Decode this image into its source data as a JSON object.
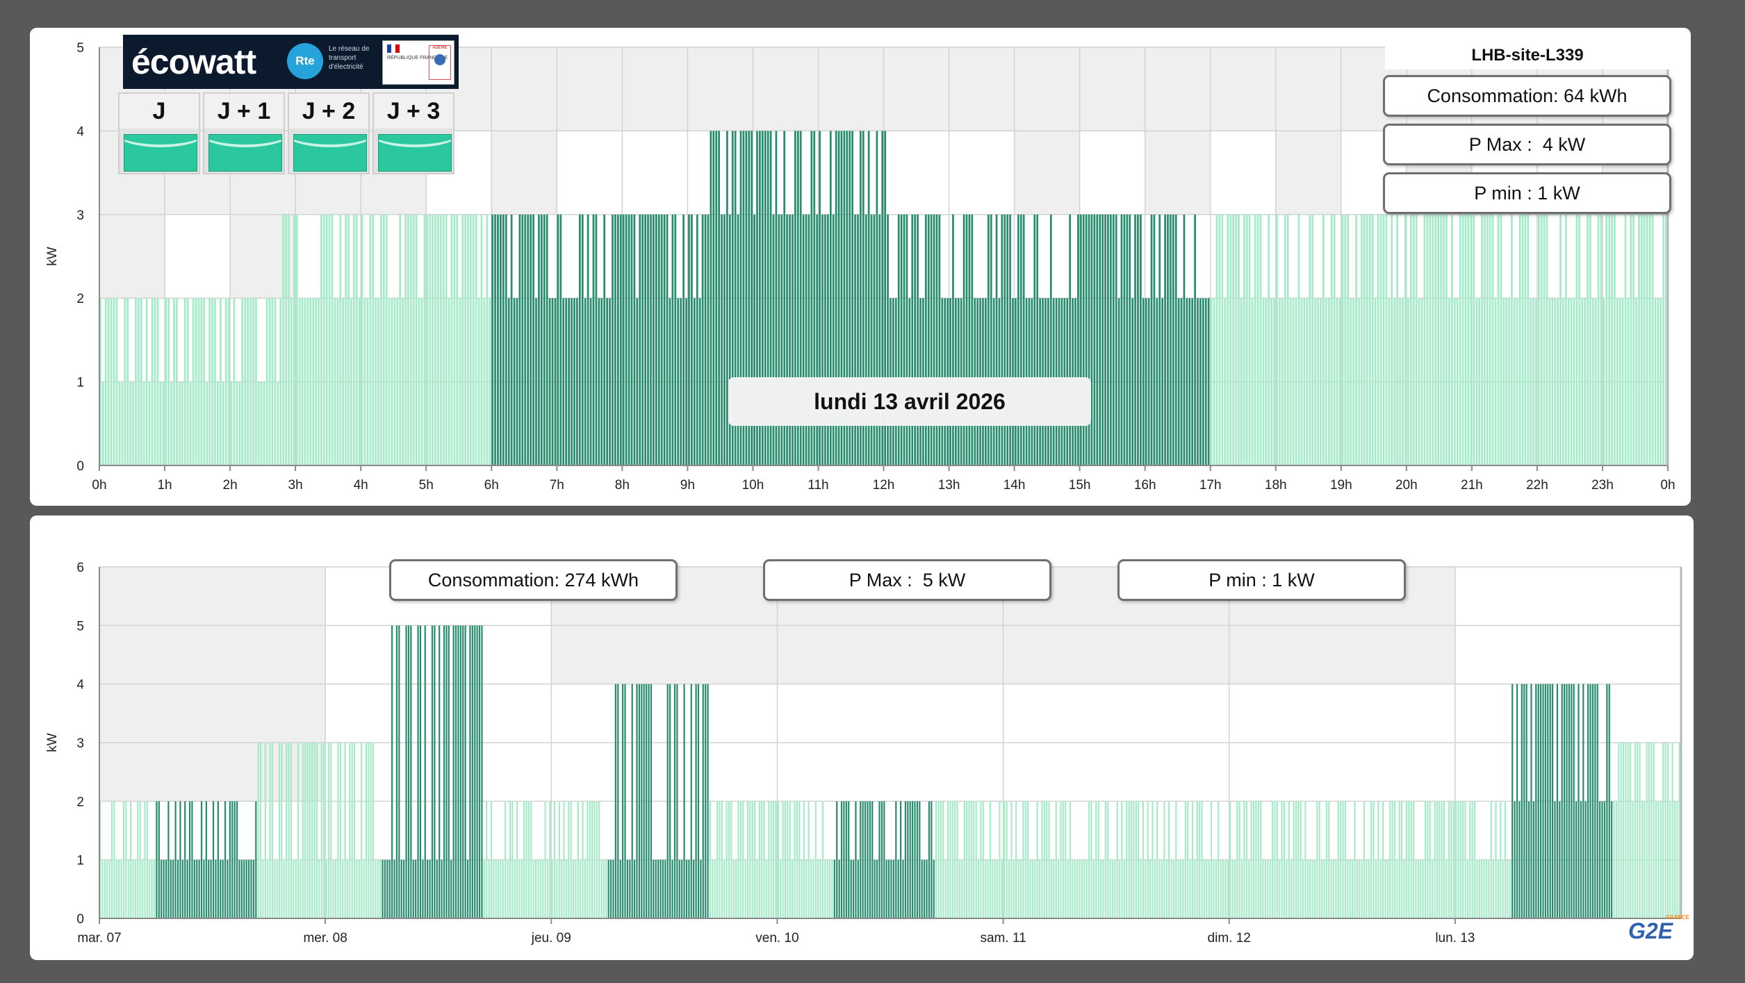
{
  "colors": {
    "light_green": "#a4ebc8",
    "dark_green": "#268d6c",
    "band_grey": "#efefef",
    "white": "#ffffff",
    "grid": "#d2d2d2",
    "axis": "#8a8a8a"
  },
  "ecowatt": {
    "brand": "écowatt",
    "rte_name": "Rte",
    "rte_tagline": "Le réseau de transport d'électricité",
    "republique": "RÉPUBLIQUE FRANÇAISE",
    "ademe": "ADEME",
    "days": [
      "J",
      "J + 1",
      "J + 2",
      "J + 3"
    ],
    "day_signal": [
      "green",
      "green",
      "green",
      "green"
    ]
  },
  "daily": {
    "site": "LHB-site-L339",
    "consumption": "Consommation: 64 kWh",
    "pmax": "P Max :  4 kW",
    "pmin": "P min : 1 kW",
    "date": "lundi 13 avril 2026"
  },
  "weekly": {
    "consumption": "Consommation: 274 kWh",
    "pmax": "P Max :  5 kW",
    "pmin": "P min : 1 kW"
  },
  "footer_logo": {
    "brand": "G2E",
    "country": "FRANCE"
  },
  "chart_data": [
    {
      "type": "bar",
      "title": "",
      "xlabel": "",
      "ylabel": "kW",
      "ylim": [
        0,
        5
      ],
      "yticks": [
        0,
        1,
        2,
        3,
        4,
        5
      ],
      "xticks": [
        "0h",
        "1h",
        "2h",
        "3h",
        "4h",
        "5h",
        "6h",
        "7h",
        "8h",
        "9h",
        "10h",
        "11h",
        "12h",
        "13h",
        "14h",
        "15h",
        "16h",
        "17h",
        "18h",
        "19h",
        "20h",
        "21h",
        "22h",
        "23h",
        "0h"
      ],
      "x_unit": "hour of day",
      "background_bands_kW": [
        {
          "from_h": 0,
          "to_h": 1,
          "level": 2
        },
        {
          "from_h": 1,
          "to_h": 2,
          "level": 3
        },
        {
          "from_h": 2,
          "to_h": 3,
          "level": 2
        },
        {
          "from_h": 3,
          "to_h": 5,
          "level": 3
        },
        {
          "from_h": 5,
          "to_h": 6,
          "level": 4
        },
        {
          "from_h": 6,
          "to_h": 7,
          "level": 3
        },
        {
          "from_h": 7,
          "to_h": 9,
          "level": 4
        },
        {
          "from_h": 9,
          "to_h": 12.5,
          "level": 4
        },
        {
          "from_h": 12.5,
          "to_h": 13,
          "level": 4
        },
        {
          "from_h": 13,
          "to_h": 14,
          "level": 4
        },
        {
          "from_h": 14,
          "to_h": 15,
          "level": 3
        },
        {
          "from_h": 15,
          "to_h": 16,
          "level": 4
        },
        {
          "from_h": 16,
          "to_h": 17,
          "level": 3
        },
        {
          "from_h": 17,
          "to_h": 18,
          "level": 4
        },
        {
          "from_h": 18,
          "to_h": 19,
          "level": 3
        },
        {
          "from_h": 19,
          "to_h": 20,
          "level": 4
        },
        {
          "from_h": 20,
          "to_h": 21,
          "level": 3
        },
        {
          "from_h": 21,
          "to_h": 23,
          "level": 4
        },
        {
          "from_h": 23,
          "to_h": 24,
          "level": 3
        }
      ],
      "series": [
        {
          "tariff": "off-peak",
          "segments": [
            {
              "from_h": 0,
              "to_h": 2.8,
              "base_kW": 1,
              "peak_kW": 2
            },
            {
              "from_h": 2.8,
              "to_h": 6,
              "base_kW": 2,
              "peak_kW": 3
            },
            {
              "from_h": 17,
              "to_h": 21.1,
              "base_kW": 2,
              "peak_kW": 3
            },
            {
              "from_h": 21.1,
              "to_h": 24,
              "base_kW": 2,
              "peak_kW": 3
            }
          ]
        },
        {
          "tariff": "peak",
          "segments": [
            {
              "from_h": 6,
              "to_h": 9.3,
              "base_kW": 2,
              "peak_kW": 3
            },
            {
              "from_h": 9.3,
              "to_h": 12.05,
              "base_kW": 3,
              "peak_kW": 4
            },
            {
              "from_h": 12.05,
              "to_h": 17,
              "base_kW": 2,
              "peak_kW": 3
            }
          ]
        }
      ]
    },
    {
      "type": "bar",
      "title": "",
      "xlabel": "",
      "ylabel": "kW",
      "ylim": [
        0,
        6
      ],
      "yticks": [
        0,
        1,
        2,
        3,
        4,
        5,
        6
      ],
      "xticks": [
        "mar. 07",
        "mer. 08",
        "jeu. 09",
        "ven. 10",
        "sam. 11",
        "dim. 12",
        "lun. 13"
      ],
      "x_unit": "day",
      "background_bands_kW": [
        {
          "from_d": 0,
          "to_d": 1,
          "level": 2
        },
        {
          "from_d": 1,
          "to_d": 2,
          "level": 6
        },
        {
          "from_d": 2,
          "to_d": 3,
          "level": 4
        },
        {
          "from_d": 3,
          "to_d": 4,
          "level": 4
        },
        {
          "from_d": 4,
          "to_d": 5,
          "level": 4
        },
        {
          "from_d": 5,
          "to_d": 6,
          "level": 4
        },
        {
          "from_d": 6,
          "to_d": 7,
          "level": 6
        }
      ],
      "series": [
        {
          "tariff": "off-peak",
          "segments": [
            {
              "from_d": 0,
              "to_d": 0.25,
              "base_kW": 1,
              "peak_kW": 2
            },
            {
              "from_d": 0.7,
              "to_d": 1.25,
              "base_kW": 1,
              "peak_kW": 3
            },
            {
              "from_d": 1.7,
              "to_d": 2.25,
              "base_kW": 1,
              "peak_kW": 2
            },
            {
              "from_d": 2.7,
              "to_d": 3.25,
              "base_kW": 1,
              "peak_kW": 2
            },
            {
              "from_d": 3.7,
              "to_d": 6.25,
              "base_kW": 1,
              "peak_kW": 2
            },
            {
              "from_d": 6.7,
              "to_d": 7.0,
              "base_kW": 2,
              "peak_kW": 3
            }
          ]
        },
        {
          "tariff": "peak",
          "segments": [
            {
              "from_d": 0.25,
              "to_d": 0.7,
              "base_kW": 1,
              "peak_kW": 2
            },
            {
              "from_d": 1.25,
              "to_d": 1.7,
              "base_kW": 1,
              "peak_kW": 5
            },
            {
              "from_d": 2.25,
              "to_d": 2.7,
              "base_kW": 1,
              "peak_kW": 4
            },
            {
              "from_d": 3.25,
              "to_d": 3.7,
              "base_kW": 1,
              "peak_kW": 2
            },
            {
              "from_d": 6.25,
              "to_d": 6.7,
              "base_kW": 2,
              "peak_kW": 4
            }
          ]
        }
      ]
    }
  ]
}
